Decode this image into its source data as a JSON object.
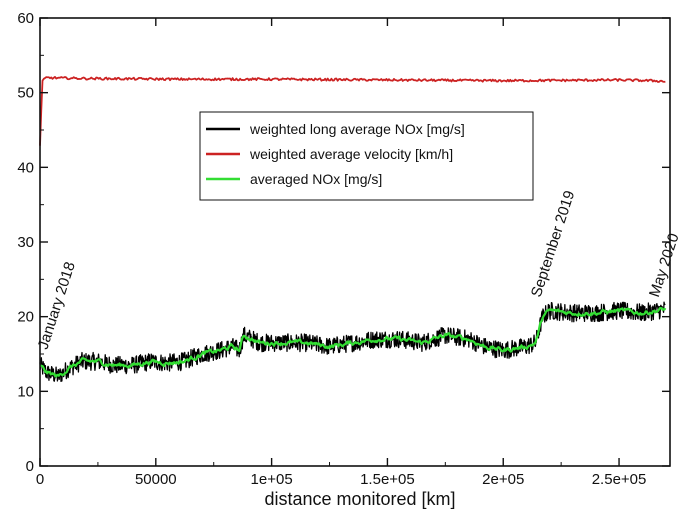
{
  "chart_data": {
    "type": "line",
    "title": "",
    "xlabel": "distance monitored [km]",
    "ylabel": "",
    "xlim": [
      0,
      272000
    ],
    "ylim": [
      0,
      60
    ],
    "x_ticks": [
      0,
      50000,
      100000,
      150000,
      200000,
      250000
    ],
    "x_tick_labels": [
      "0",
      "50000",
      "1e+05",
      "1.5e+05",
      "2e+05",
      "2.5e+05"
    ],
    "y_ticks": [
      0,
      10,
      20,
      30,
      40,
      50,
      60
    ],
    "y_tick_labels": [
      "0",
      "10",
      "20",
      "30",
      "40",
      "50",
      "60"
    ],
    "grid": false,
    "legend_placement": "upper-center",
    "colors": {
      "nox_long": "#000000",
      "velocity": "#cc2222",
      "nox_avg": "#33dd33",
      "axis": "#111111"
    },
    "series": [
      {
        "name": "weighted long average NOx [mg/s]",
        "color_key": "nox_long",
        "x": [
          0,
          3000,
          8000,
          12000,
          18000,
          25000,
          32000,
          40000,
          48000,
          55000,
          62000,
          70000,
          78000,
          83000,
          86000,
          88000,
          95000,
          105000,
          115000,
          125000,
          135000,
          145000,
          155000,
          165000,
          175000,
          185000,
          192000,
          200000,
          210000,
          214000,
          217000,
          220000,
          230000,
          240000,
          250000,
          260000,
          270000
        ],
        "y": [
          13.5,
          12.5,
          12.0,
          13.0,
          14.0,
          14.0,
          13.5,
          13.5,
          14.0,
          13.8,
          14.0,
          15.0,
          15.5,
          16.0,
          15.5,
          17.5,
          16.5,
          16.5,
          16.5,
          16.0,
          16.5,
          17.0,
          17.0,
          16.5,
          17.5,
          17.0,
          16.0,
          15.5,
          16.0,
          16.5,
          20.0,
          20.8,
          20.5,
          20.5,
          20.8,
          20.5,
          21.0
        ],
        "noise": 1.2
      },
      {
        "name": "weighted average velocity [km/h]",
        "color_key": "velocity",
        "x": [
          0,
          1000,
          2500,
          20000,
          60000,
          100000,
          150000,
          200000,
          250000,
          265000,
          270000
        ],
        "y": [
          43.0,
          51.5,
          52.0,
          51.9,
          51.8,
          51.8,
          51.7,
          51.6,
          51.7,
          51.6,
          51.5
        ],
        "noise": 0.15
      },
      {
        "name": "averaged NOx [mg/s]",
        "color_key": "nox_avg",
        "x": [
          0,
          3000,
          8000,
          12000,
          18000,
          25000,
          32000,
          40000,
          48000,
          55000,
          62000,
          70000,
          78000,
          83000,
          86000,
          88000,
          95000,
          105000,
          115000,
          125000,
          135000,
          145000,
          155000,
          165000,
          175000,
          185000,
          192000,
          200000,
          210000,
          214000,
          217000,
          220000,
          230000,
          240000,
          250000,
          260000,
          270000
        ],
        "y": [
          13.5,
          12.5,
          12.0,
          13.0,
          14.0,
          14.0,
          13.5,
          13.5,
          14.0,
          13.8,
          14.0,
          15.0,
          15.5,
          16.0,
          15.5,
          17.5,
          16.5,
          16.5,
          16.5,
          16.0,
          16.5,
          17.0,
          17.0,
          16.5,
          17.5,
          17.0,
          16.0,
          15.5,
          16.0,
          16.5,
          20.0,
          20.8,
          20.5,
          20.5,
          20.8,
          20.5,
          21.0
        ],
        "noise": 0.25
      }
    ],
    "annotations": [
      {
        "text": "January 2018",
        "x": 3000,
        "y": 15.5
      },
      {
        "text": "September 2019",
        "x": 216000,
        "y": 22.5
      },
      {
        "text": "May 2020",
        "x": 267000,
        "y": 22.5
      }
    ]
  }
}
